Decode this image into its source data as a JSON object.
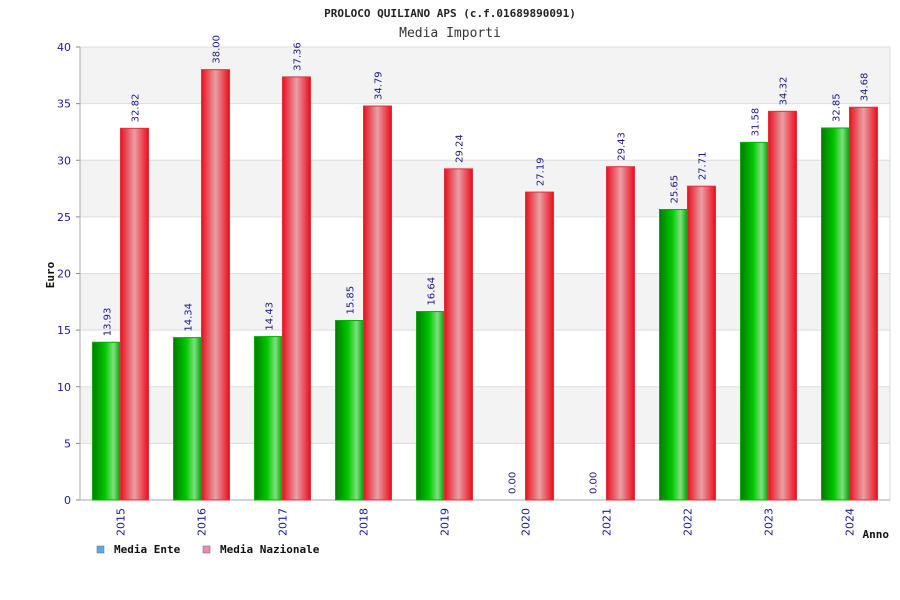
{
  "chart_data": {
    "type": "bar",
    "title": "PROLOCO QUILIANO APS (c.f.01689890091)",
    "subtitle": "Media Importi",
    "xlabel": "Anno",
    "ylabel": "Euro",
    "ylim": [
      0,
      40
    ],
    "yticks": [
      0,
      5,
      10,
      15,
      20,
      25,
      30,
      35,
      40
    ],
    "grid": true,
    "legend_placement": "bottom-left",
    "categories": [
      "2015",
      "2016",
      "2017",
      "2018",
      "2019",
      "2020",
      "2021",
      "2022",
      "2023",
      "2024"
    ],
    "series": [
      {
        "name": "Media Ente",
        "color": "#00aa00",
        "legend_color": "#5fa8ee",
        "values": [
          13.93,
          14.34,
          14.43,
          15.85,
          16.64,
          0.0,
          0.0,
          25.65,
          31.58,
          32.85
        ],
        "labels": [
          "13.93",
          "14.34",
          "14.43",
          "15.85",
          "16.64",
          "0.00",
          "0.00",
          "25.65",
          "31.58",
          "32.85"
        ]
      },
      {
        "name": "Media Nazionale",
        "color": "#ee1122",
        "legend_color": "#ee88bb",
        "values": [
          32.82,
          38.0,
          37.36,
          34.79,
          29.24,
          27.19,
          29.43,
          27.71,
          34.32,
          34.68
        ],
        "labels": [
          "32.82",
          "38.00",
          "37.36",
          "34.79",
          "29.24",
          "27.19",
          "29.43",
          "27.71",
          "34.32",
          "34.68"
        ]
      }
    ]
  }
}
